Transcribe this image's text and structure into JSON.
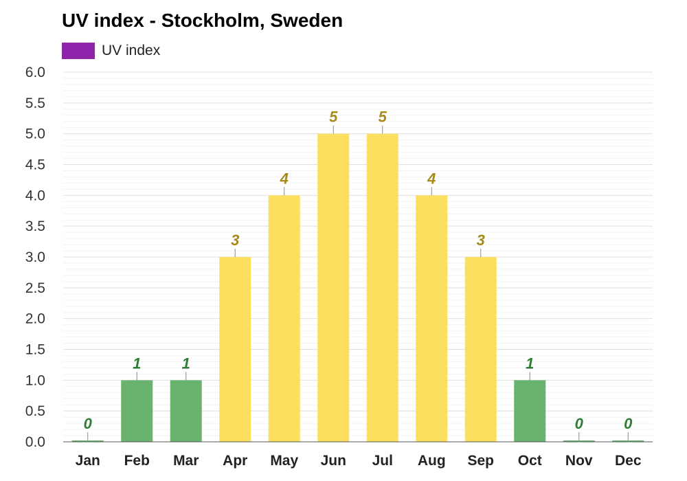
{
  "chart_data": {
    "type": "bar",
    "title": "UV index - Stockholm, Sweden",
    "legend": [
      {
        "label": "UV index",
        "color": "#8e24aa"
      }
    ],
    "legend_position": "top-left",
    "grid": true,
    "categories": [
      "Jan",
      "Feb",
      "Mar",
      "Apr",
      "May",
      "Jun",
      "Jul",
      "Aug",
      "Sep",
      "Oct",
      "Nov",
      "Dec"
    ],
    "series": [
      {
        "name": "UV index",
        "values": [
          0,
          1,
          1,
          3,
          4,
          5,
          5,
          4,
          3,
          1,
          0,
          0
        ]
      }
    ],
    "data_labels": [
      "0",
      "1",
      "1",
      "3",
      "4",
      "5",
      "5",
      "4",
      "3",
      "1",
      "0",
      "0"
    ],
    "ylim": [
      0,
      6
    ],
    "yticks": [
      "0.0",
      "0.5",
      "1.0",
      "1.5",
      "2.0",
      "2.5",
      "3.0",
      "3.5",
      "4.0",
      "4.5",
      "5.0",
      "5.5",
      "6.0"
    ],
    "colors": {
      "low_bar": "#69b36f",
      "low_label": "#2e7d32",
      "moderate_bar": "#fcdf5e",
      "moderate_label": "#a68b1b",
      "grid": "#e0e0e0",
      "axis": "#555555"
    }
  }
}
